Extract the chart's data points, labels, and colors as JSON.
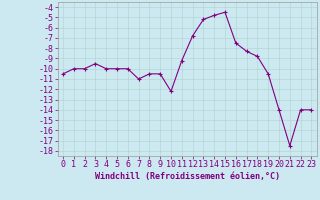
{
  "x": [
    0,
    1,
    2,
    3,
    4,
    5,
    6,
    7,
    8,
    9,
    10,
    11,
    12,
    13,
    14,
    15,
    16,
    17,
    18,
    19,
    20,
    21,
    22,
    23
  ],
  "y": [
    -10.5,
    -10.0,
    -10.0,
    -9.5,
    -10.0,
    -10.0,
    -10.0,
    -11.0,
    -10.5,
    -10.5,
    -12.2,
    -9.2,
    -6.8,
    -5.2,
    -4.8,
    -4.5,
    -7.5,
    -8.3,
    -8.8,
    -10.5,
    -14.0,
    -17.5,
    -14.0,
    -14.0
  ],
  "line_color": "#800080",
  "marker": "+",
  "marker_size": 3,
  "bg_color": "#cce8f0",
  "grid_color": "#b0d4cc",
  "xlabel": "Windchill (Refroidissement éolien,°C)",
  "ytick_labels": [
    "-4",
    "-5",
    "-6",
    "-7",
    "-8",
    "-9",
    "-10",
    "-11",
    "-12",
    "-13",
    "-14",
    "-15",
    "-16",
    "-17",
    "-18"
  ],
  "ytick_vals": [
    -4,
    -5,
    -6,
    -7,
    -8,
    -9,
    -10,
    -11,
    -12,
    -13,
    -14,
    -15,
    -16,
    -17,
    -18
  ],
  "xtick_vals": [
    0,
    1,
    2,
    3,
    4,
    5,
    6,
    7,
    8,
    9,
    10,
    11,
    12,
    13,
    14,
    15,
    16,
    17,
    18,
    19,
    20,
    21,
    22,
    23
  ],
  "ylim": [
    -18.5,
    -3.5
  ],
  "xlim": [
    -0.5,
    23.5
  ],
  "label_color": "#800080",
  "tick_fontsize": 6,
  "xlabel_fontsize": 6
}
